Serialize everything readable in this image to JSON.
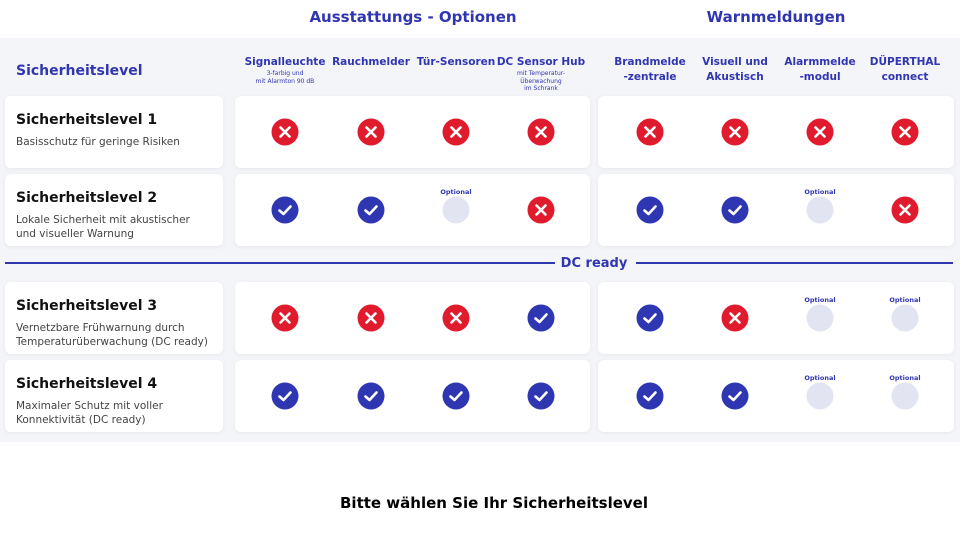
{
  "header": {
    "groups": [
      "Ausstattungs - Optionen",
      "Warnmeldungen"
    ],
    "row_header": "Sicherheitslevel"
  },
  "columns": [
    {
      "label": [
        "Signalleuchte"
      ],
      "note": [
        "3-farbig und",
        "mit Alarmton 90 dB"
      ]
    },
    {
      "label": [
        "Rauchmelder"
      ],
      "note": []
    },
    {
      "label": [
        "Tür-Sensoren"
      ],
      "note": []
    },
    {
      "label": [
        "DC Sensor Hub"
      ],
      "note": [
        "mit Temperatur-",
        "Überwachung",
        "im Schrank"
      ]
    },
    {
      "label": [
        "Brandmelde",
        "-zentrale"
      ],
      "note": []
    },
    {
      "label": [
        "Visuell und",
        "Akustisch"
      ],
      "note": []
    },
    {
      "label": [
        "Alarmmelde",
        "-modul"
      ],
      "note": []
    },
    {
      "label": [
        "DÜPERTHAL",
        "connect"
      ],
      "note": []
    }
  ],
  "divider": "DC ready",
  "optional_label": "Optional",
  "rows": [
    {
      "title": "Sicherheitslevel 1",
      "description": "Basisschutz für geringe Risiken",
      "status": [
        "no",
        "no",
        "no",
        "no",
        "no",
        "no",
        "no",
        "no"
      ]
    },
    {
      "title": "Sicherheitslevel 2",
      "description": "Lokale Sicherheit mit akustischer und visueller Warnung",
      "status": [
        "yes",
        "yes",
        "optional",
        "no",
        "yes",
        "yes",
        "optional",
        "no"
      ]
    },
    {
      "title": "Sicherheitslevel 3",
      "description": "Vernetzbare Frühwarnung durch Temperaturüberwachung (DC ready)",
      "status": [
        "no",
        "no",
        "no",
        "yes",
        "yes",
        "no",
        "optional",
        "optional"
      ]
    },
    {
      "title": "Sicherheitslevel 4",
      "description": "Maximaler Schutz mit voller Konnektivität (DC ready)",
      "status": [
        "yes",
        "yes",
        "yes",
        "yes",
        "yes",
        "yes",
        "optional",
        "optional"
      ]
    }
  ],
  "footer": "Bitte wählen Sie Ihr Sicherheitslevel"
}
